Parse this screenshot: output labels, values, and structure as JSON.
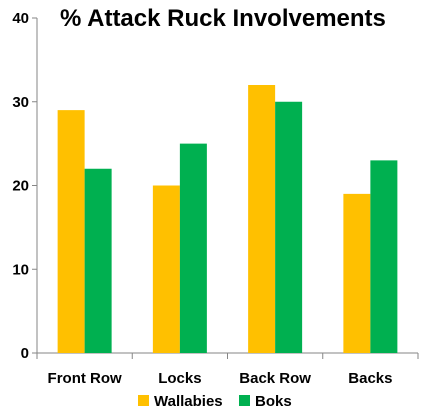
{
  "colors": {
    "Wallabies": "#FFC000",
    "Boks": "#00B050",
    "axis": "#868686",
    "background": "#ffffff"
  },
  "chart_data": {
    "type": "bar",
    "title": "% Attack Ruck Involvements",
    "xlabel": "",
    "ylabel": "",
    "categories": [
      "Front Row",
      "Locks",
      "Back Row",
      "Backs"
    ],
    "series": [
      {
        "name": "Wallabies",
        "values": [
          29,
          20,
          32,
          19
        ]
      },
      {
        "name": "Boks",
        "values": [
          22,
          25,
          30,
          23
        ]
      }
    ],
    "ylim": [
      0,
      40
    ],
    "yticks": [
      0,
      10,
      20,
      30,
      40
    ],
    "grid": false,
    "legend": "bottom"
  }
}
